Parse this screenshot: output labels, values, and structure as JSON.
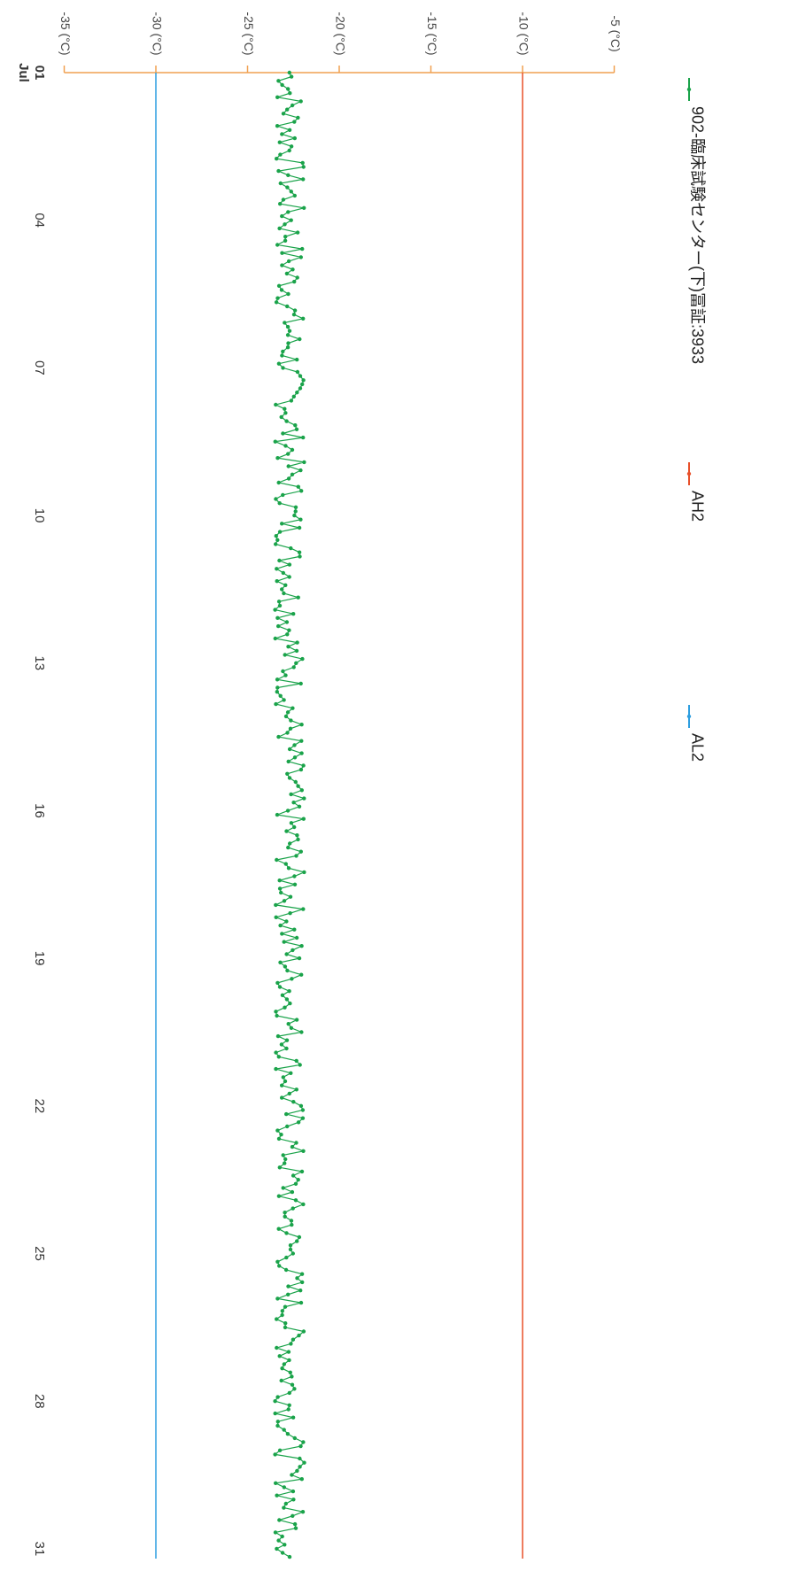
{
  "chart_data": {
    "type": "line",
    "orientation": "rotated-90-clockwise",
    "legend_position": "right",
    "grid": false,
    "y_axis": {
      "unit": "(°C)",
      "ticks": [
        -35,
        -30,
        -25,
        -20,
        -15,
        -10,
        -5
      ],
      "tick_labels": [
        "-35 (°C)",
        "-30 (°C)",
        "-25 (°C)",
        "-20 (°C)",
        "-15 (°C)",
        "-10 (°C)",
        "-5 (°C)"
      ],
      "ylim": [
        -35,
        -5
      ]
    },
    "x_axis": {
      "tick_labels": [
        "01",
        "04",
        "07",
        "10",
        "13",
        "16",
        "19",
        "22",
        "25",
        "28",
        "31"
      ],
      "tick_days": [
        1,
        4,
        7,
        10,
        13,
        16,
        19,
        22,
        25,
        28,
        31
      ],
      "month_label": "Jul",
      "xlim": [
        1,
        31.2
      ]
    },
    "series": [
      {
        "name": "902-臨床試験センター(下)冨証:3933",
        "color": "#1aa34a",
        "style": "line-with-markers",
        "value_range": [
          -23.5,
          -21.9
        ],
        "samples_per_day": 12
      },
      {
        "name": "AH2",
        "color": "#e8502a",
        "style": "constant",
        "value": -10
      },
      {
        "name": "AL2",
        "color": "#2d9ee0",
        "style": "constant",
        "value": -30
      }
    ]
  }
}
